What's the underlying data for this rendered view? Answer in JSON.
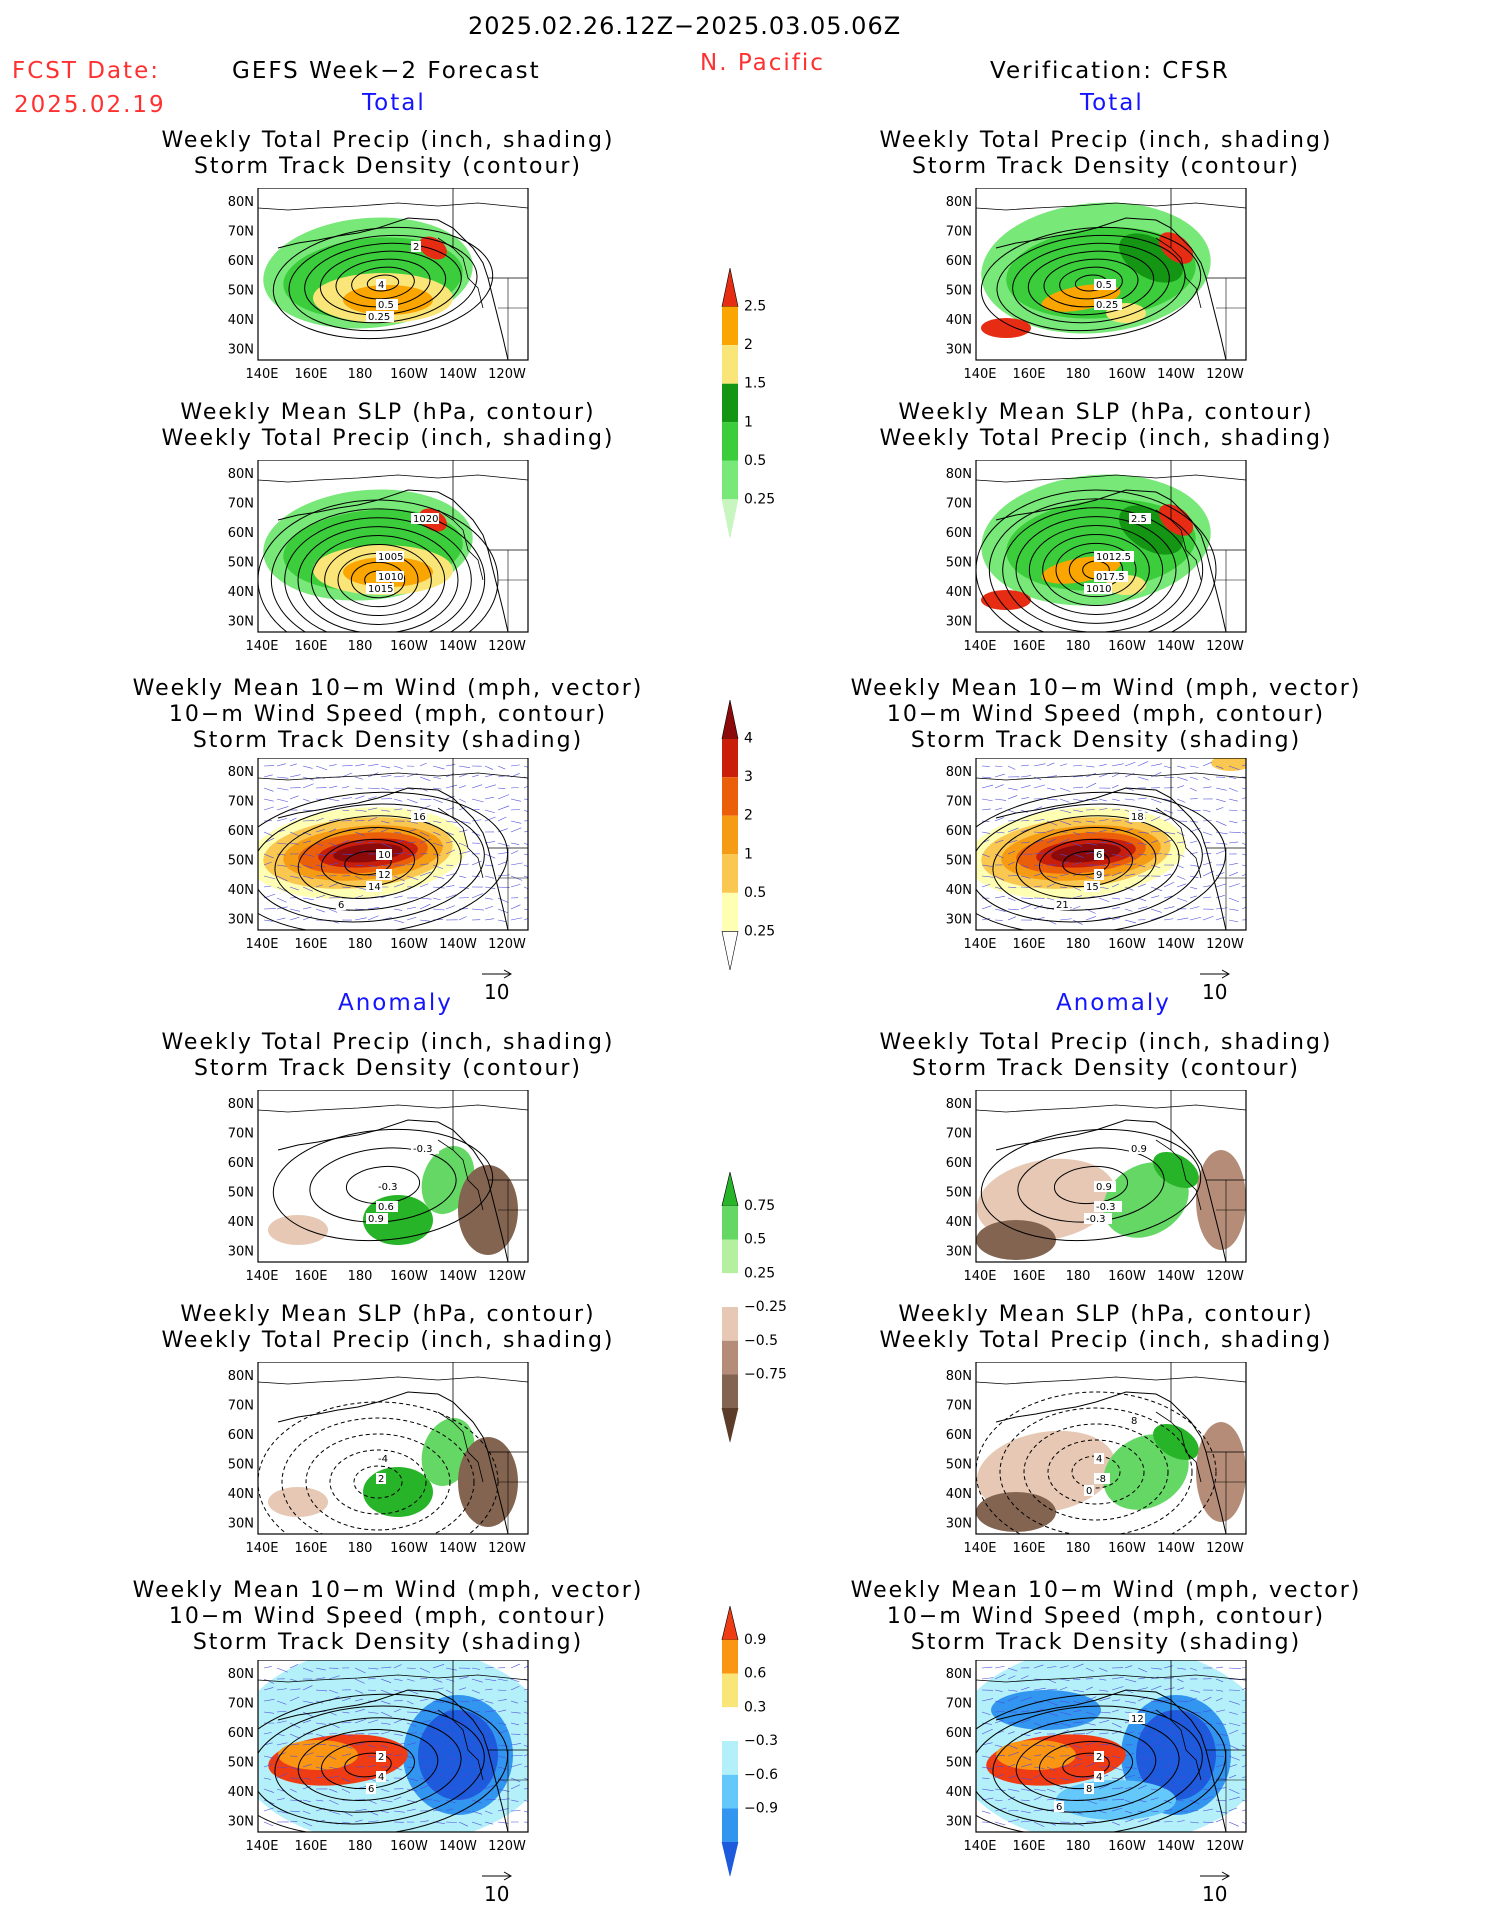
{
  "header": {
    "date_range": "2025.02.26.12Z−2025.03.05.06Z",
    "fcst_label": "FCST Date:",
    "fcst_date": "2025.02.19",
    "forecast_title": "GEFS Week−2 Forecast",
    "region": "N. Pacific",
    "verification_title": "Verification: CFSR"
  },
  "sections": {
    "total": "Total",
    "anomaly": "Anomaly"
  },
  "panel_titles": {
    "precip_track": [
      "Weekly Total Precip (inch, shading)",
      "Storm Track Density (contour)"
    ],
    "slp_precip": [
      "Weekly Mean SLP (hPa, contour)",
      "Weekly Total Precip (inch, shading)"
    ],
    "wind_track": [
      "Weekly Mean 10−m Wind (mph, vector)",
      "10−m Wind Speed (mph, contour)",
      "Storm Track Density (shading)"
    ]
  },
  "axes": {
    "lat_labels": [
      "80N",
      "70N",
      "60N",
      "50N",
      "40N",
      "30N"
    ],
    "lon_labels": [
      "140E",
      "160E",
      "180",
      "160W",
      "140W",
      "120W"
    ]
  },
  "vector_scale": "10",
  "colorbars": {
    "precip_total": {
      "labels": [
        "0.25",
        "0.5",
        "1",
        "1.5",
        "2",
        "2.5"
      ],
      "colors": [
        "#c8f5c0",
        "#78e878",
        "#3ccd3c",
        "#149614",
        "#fae678",
        "#faa500",
        "#e62d14"
      ]
    },
    "track_total": {
      "labels": [
        "0.25",
        "0.5",
        "1",
        "2",
        "3",
        "4"
      ],
      "colors": [
        "#ffffff",
        "#ffffb4",
        "#fac850",
        "#f59b14",
        "#ec5f0a",
        "#c81e0a",
        "#8c0a0a"
      ]
    },
    "precip_anomaly": {
      "labels": [
        "0.75",
        "0.5",
        "0.25",
        "−0.25",
        "−0.5",
        "−0.75"
      ],
      "colors": [
        "#28b428",
        "#64d764",
        "#b4f0a0",
        "#ffffff",
        "#e6c8b4",
        "#b48c78",
        "#826450",
        "#5a3c28"
      ]
    },
    "track_anomaly": {
      "labels": [
        "0.9",
        "0.6",
        "0.3",
        "−0.3",
        "−0.6",
        "−0.9"
      ],
      "colors": [
        "#f03c14",
        "#fa9614",
        "#fae678",
        "#ffffff",
        "#b4f0fa",
        "#64c8fa",
        "#3296f0",
        "#1e5adc"
      ]
    }
  },
  "panel_annotations": {
    "fc_total_precip": [
      "4",
      "0.5",
      "0.25",
      "2"
    ],
    "vf_total_precip": [
      "0.5",
      "0.25"
    ],
    "fc_total_slp": [
      "1005",
      "1010",
      "1015",
      "1020"
    ],
    "vf_total_slp": [
      "1012.5",
      "017.5",
      "1010",
      "2.5"
    ],
    "fc_total_wind": [
      "10",
      "12",
      "14",
      "16",
      "6"
    ],
    "vf_total_wind": [
      "6",
      "9",
      "15",
      "18",
      "21"
    ],
    "fc_anom_precip": [
      "-0.3",
      "0.6",
      "0.9",
      "-0.3"
    ],
    "vf_anom_precip": [
      "0.9",
      "-0.3",
      "-0.3",
      "0.9"
    ],
    "fc_anom_slp": [
      "-4",
      "2"
    ],
    "vf_anom_slp": [
      "4",
      "-8",
      "0",
      "8"
    ],
    "fc_anom_wind": [
      "2",
      "4",
      "6"
    ],
    "vf_anom_wind": [
      "2",
      "4",
      "8",
      "12",
      "6"
    ]
  }
}
